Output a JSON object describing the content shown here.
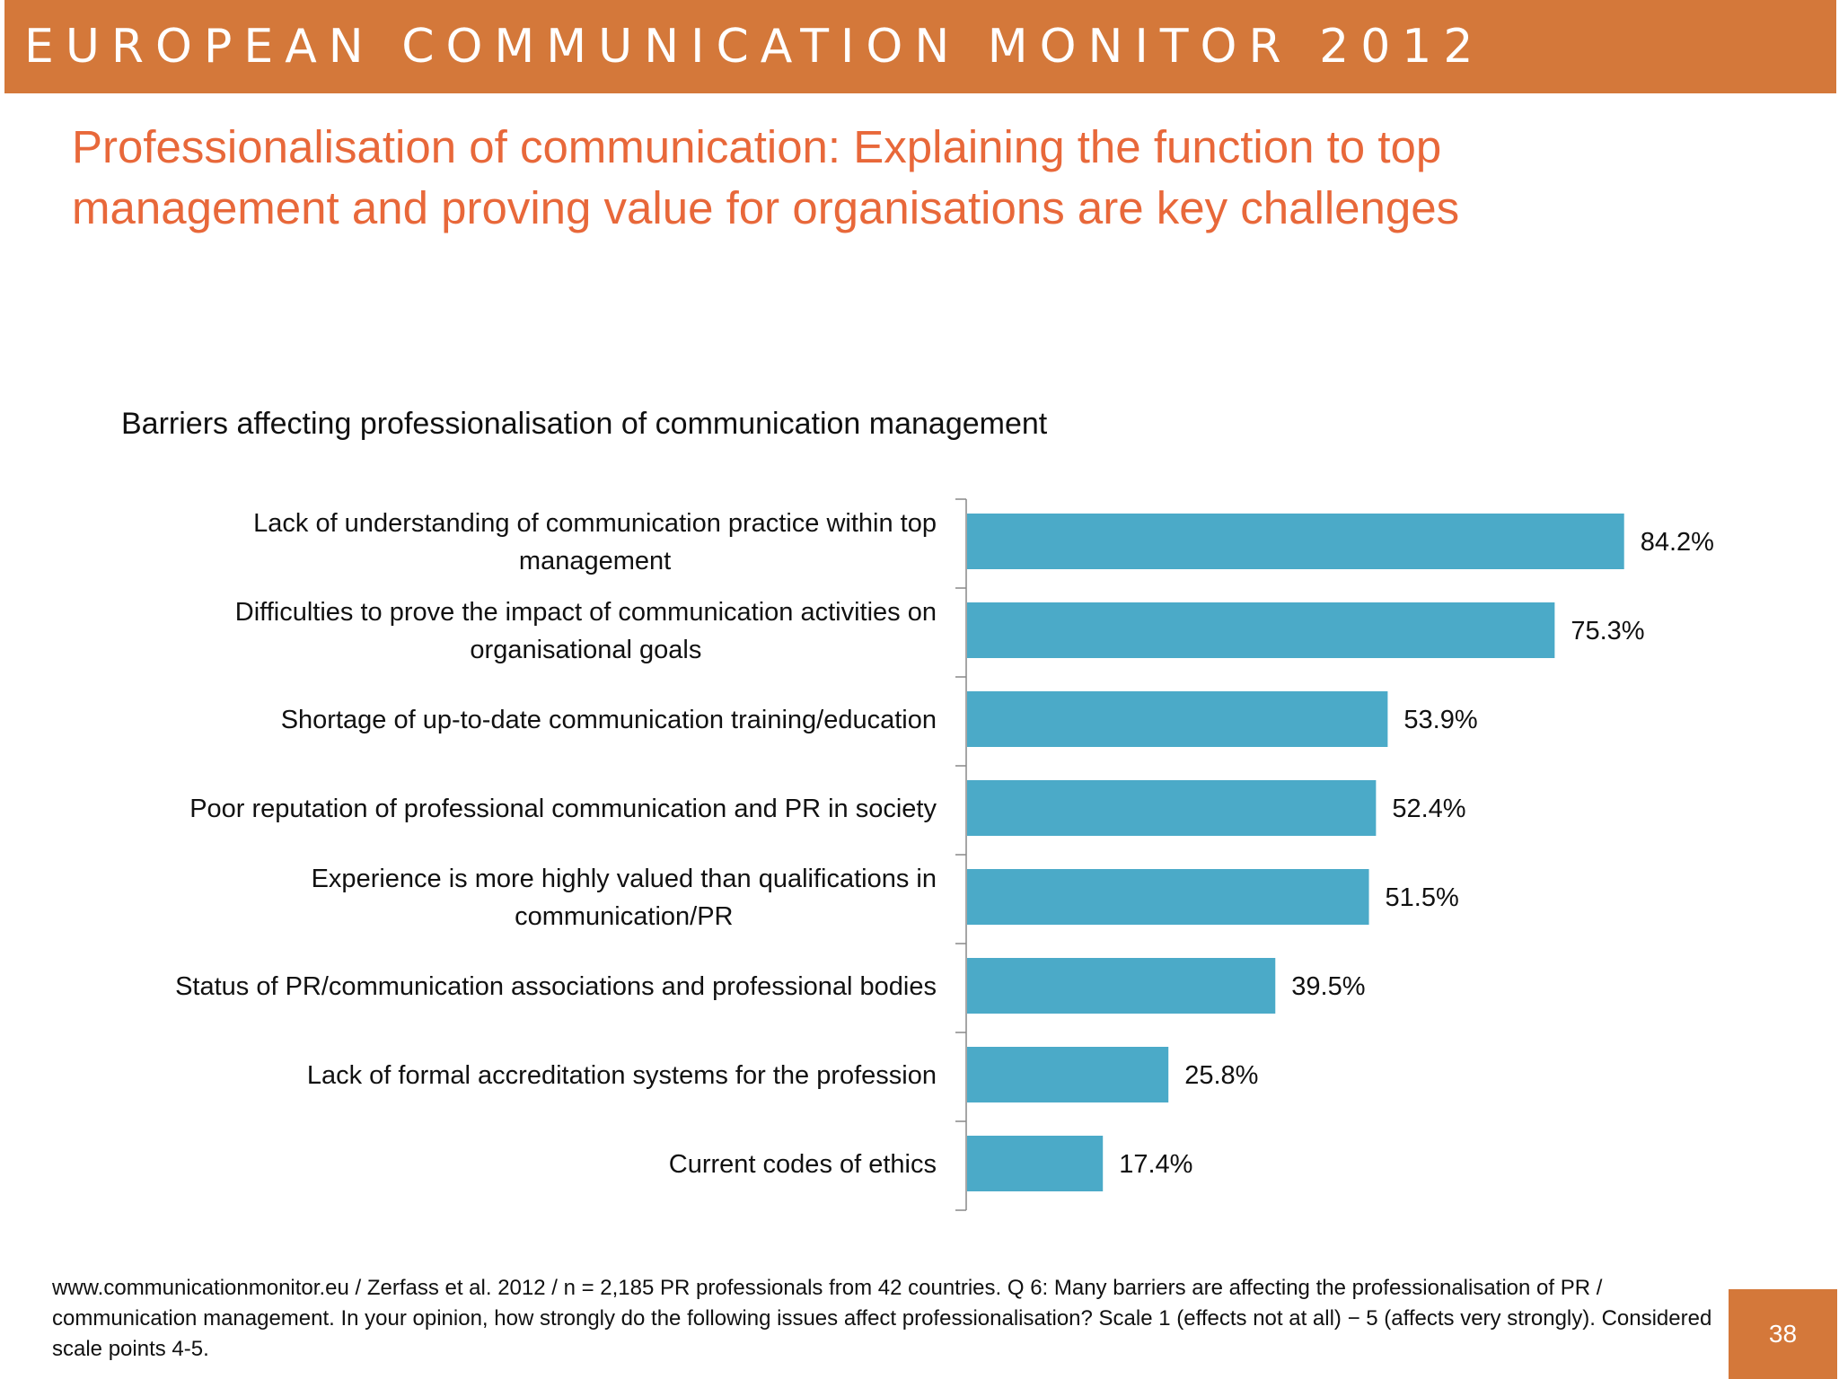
{
  "header": {
    "title": "EUROPEAN COMMUNICATION MONITOR 2012"
  },
  "slide_title": "Professionalisation of communication: Explaining the function to top management and proving value for organisations are key challenges",
  "chart_data": {
    "type": "bar",
    "orientation": "horizontal",
    "title": "Barriers affecting professionalisation of communication management",
    "categories": [
      "Lack of understanding of communication practice within top management",
      "Difficulties to prove the impact of communication activities on organisational goals",
      "Shortage of up-to-date communication training/education",
      "Poor reputation of professional communication and PR in society",
      "Experience is more highly valued than qualifications in communication/PR",
      "Status of PR/communication associations and professional bodies",
      "Lack of formal accreditation systems for the profession",
      "Current codes of ethics"
    ],
    "category_lines": [
      [
        "Lack of understanding of communication practice within top",
        "management"
      ],
      [
        "Difficulties to prove the impact of communication activities on",
        "organisational goals"
      ],
      [
        "Shortage of up-to-date communication training/education"
      ],
      [
        "Poor reputation of professional communication and PR in society"
      ],
      [
        "Experience is more highly valued than qualifications in",
        "communication/PR"
      ],
      [
        "Status of PR/communication associations and professional bodies"
      ],
      [
        "Lack of formal accreditation systems for the profession"
      ],
      [
        "Current codes of ethics"
      ]
    ],
    "values": [
      84.2,
      75.3,
      53.9,
      52.4,
      51.5,
      39.5,
      25.8,
      17.4
    ],
    "value_labels": [
      "84.2%",
      "75.3%",
      "53.9%",
      "52.4%",
      "51.5%",
      "39.5%",
      "25.8%",
      "17.4%"
    ],
    "bar_color": "#4BAAC8",
    "xlim": [
      0,
      100
    ],
    "xlabel": "",
    "ylabel": "",
    "grid": false,
    "legend": "none"
  },
  "footnote": "www.communicationmonitor.eu / Zerfass et al. 2012 / n = 2,185 PR professionals from 42 countries. Q 6: Many barriers are affecting the professionalisation of PR / communication management. In your opinion, how strongly do the following issues affect professionalisation? Scale 1 (effects not at all) − 5 (affects very strongly). Considered scale points 4-5.",
  "page_number": "38",
  "colors": {
    "header_bg": "#D4783A",
    "title": "#E8683A",
    "bar": "#4BAAC8",
    "axis": "#888888"
  }
}
